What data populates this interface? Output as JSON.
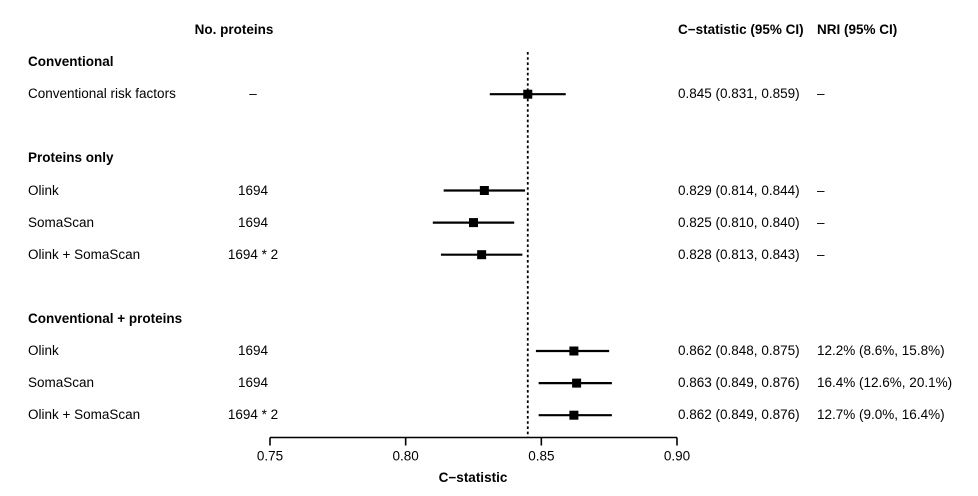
{
  "columns": {
    "no_proteins": "No. proteins",
    "c_statistic": "C−statistic (95% CI)",
    "nri": "NRI (95% CI)"
  },
  "chart_data": {
    "type": "forest",
    "xlabel": "C−statistic",
    "xlim": [
      0.75,
      0.9
    ],
    "ticks": [
      "0.75",
      "0.80",
      "0.85",
      "0.90"
    ],
    "reference_line": 0.845,
    "groups": [
      {
        "header": "Conventional",
        "items": [
          {
            "label": "Conventional risk factors",
            "n_proteins": "–",
            "estimate": 0.845,
            "ci_low": 0.831,
            "ci_high": 0.859,
            "c_statistic_text": "0.845 (0.831, 0.859)",
            "nri_text": "–"
          }
        ]
      },
      {
        "header": "Proteins only",
        "items": [
          {
            "label": "Olink",
            "n_proteins": "1694",
            "estimate": 0.829,
            "ci_low": 0.814,
            "ci_high": 0.844,
            "c_statistic_text": "0.829 (0.814, 0.844)",
            "nri_text": "–"
          },
          {
            "label": "SomaScan",
            "n_proteins": "1694",
            "estimate": 0.825,
            "ci_low": 0.81,
            "ci_high": 0.84,
            "c_statistic_text": "0.825 (0.810, 0.840)",
            "nri_text": "–"
          },
          {
            "label": "Olink + SomaScan",
            "n_proteins": "1694 * 2",
            "estimate": 0.828,
            "ci_low": 0.813,
            "ci_high": 0.843,
            "c_statistic_text": "0.828 (0.813, 0.843)",
            "nri_text": "–"
          }
        ]
      },
      {
        "header": "Conventional + proteins",
        "items": [
          {
            "label": "Olink",
            "n_proteins": "1694",
            "estimate": 0.862,
            "ci_low": 0.848,
            "ci_high": 0.875,
            "c_statistic_text": "0.862 (0.848, 0.875)",
            "nri_text": "12.2% (8.6%, 15.8%)"
          },
          {
            "label": "SomaScan",
            "n_proteins": "1694",
            "estimate": 0.863,
            "ci_low": 0.849,
            "ci_high": 0.876,
            "c_statistic_text": "0.863 (0.849, 0.876)",
            "nri_text": "16.4% (12.6%, 20.1%)"
          },
          {
            "label": "Olink + SomaScan",
            "n_proteins": "1694 * 2",
            "estimate": 0.862,
            "ci_low": 0.849,
            "ci_high": 0.876,
            "c_statistic_text": "0.862 (0.849, 0.876)",
            "nri_text": "12.7% (9.0%, 16.4%)"
          }
        ]
      }
    ],
    "colors": {
      "ink": "#000000",
      "background": "#ffffff"
    }
  }
}
